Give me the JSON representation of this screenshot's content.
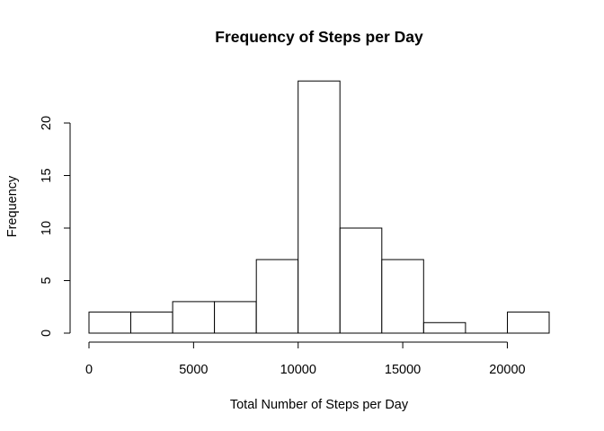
{
  "chart_data": {
    "type": "histogram",
    "title": "Frequency of Steps per Day",
    "xlabel": "Total Number of Steps per Day",
    "ylabel": "Frequency",
    "breaks": [
      0,
      2000,
      4000,
      6000,
      8000,
      10000,
      12000,
      14000,
      16000,
      18000,
      20000,
      22000
    ],
    "counts": [
      2,
      2,
      3,
      3,
      7,
      24,
      10,
      7,
      1,
      0,
      2
    ],
    "x_ticks": [
      0,
      5000,
      10000,
      15000,
      20000
    ],
    "x_tick_labels": [
      "0",
      "5000",
      "10000",
      "15000",
      "20000"
    ],
    "y_ticks": [
      0,
      5,
      10,
      15,
      20
    ],
    "y_tick_labels": [
      "0",
      "5",
      "10",
      "15",
      "20"
    ],
    "xlim": [
      0,
      22000
    ],
    "ylim": [
      0,
      24
    ],
    "grid": false,
    "legend": "none"
  }
}
